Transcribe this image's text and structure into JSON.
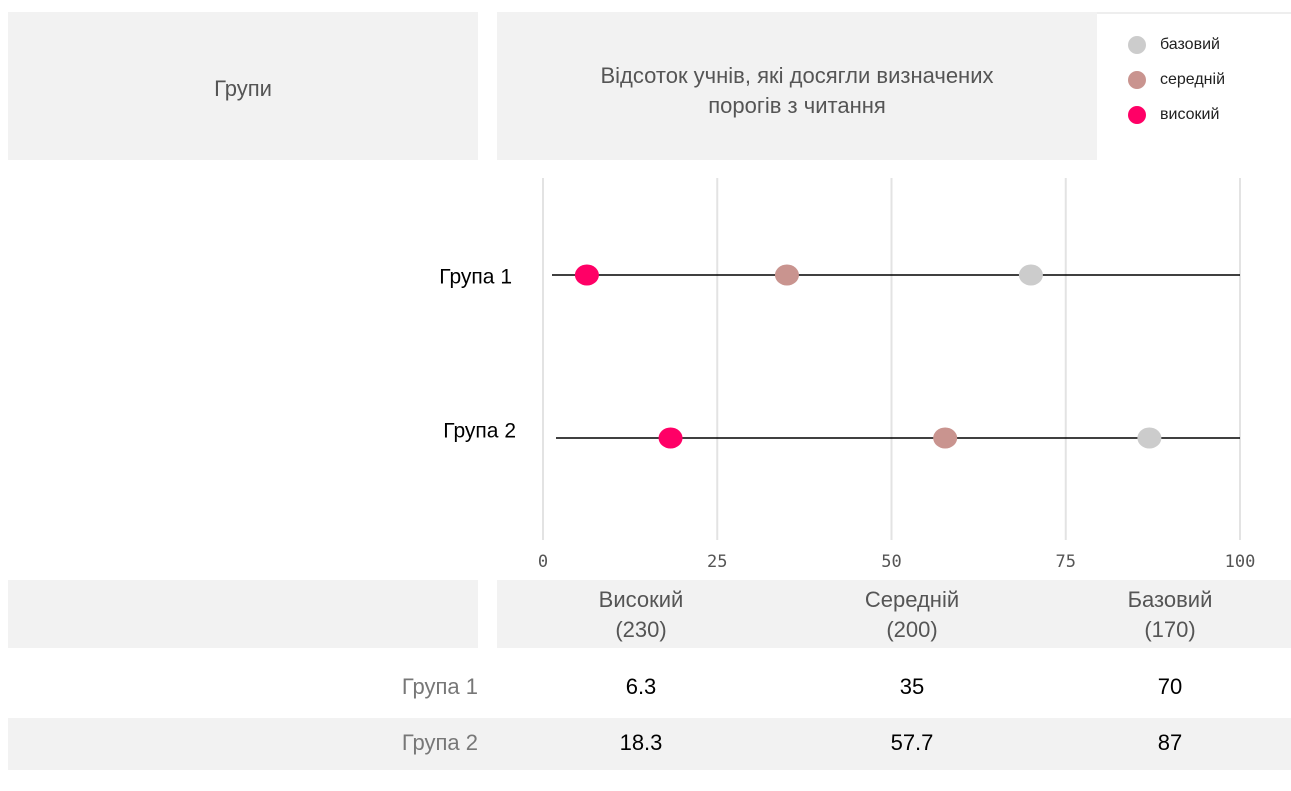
{
  "chart_data": {
    "type": "dot",
    "header": "Групи",
    "title": "Відсоток учнів, які досягли визначених порогів з читання",
    "categories": [
      "Група 1",
      "Група 2"
    ],
    "series": [
      {
        "name": "високий",
        "color": "#ff0066",
        "values": [
          6.3,
          18.3
        ],
        "column": "Високий",
        "column_note": "(230)"
      },
      {
        "name": "середній",
        "color": "#c9948f",
        "values": [
          35,
          57.7
        ],
        "column": "Середній",
        "column_note": "(200)"
      },
      {
        "name": "базовий",
        "color": "#cccccc",
        "values": [
          70,
          87
        ],
        "column": "Базовий",
        "column_note": "(170)"
      }
    ],
    "xlim": [
      0,
      100
    ],
    "xticks": [
      0,
      25,
      50,
      75,
      100
    ],
    "grid": true
  }
}
